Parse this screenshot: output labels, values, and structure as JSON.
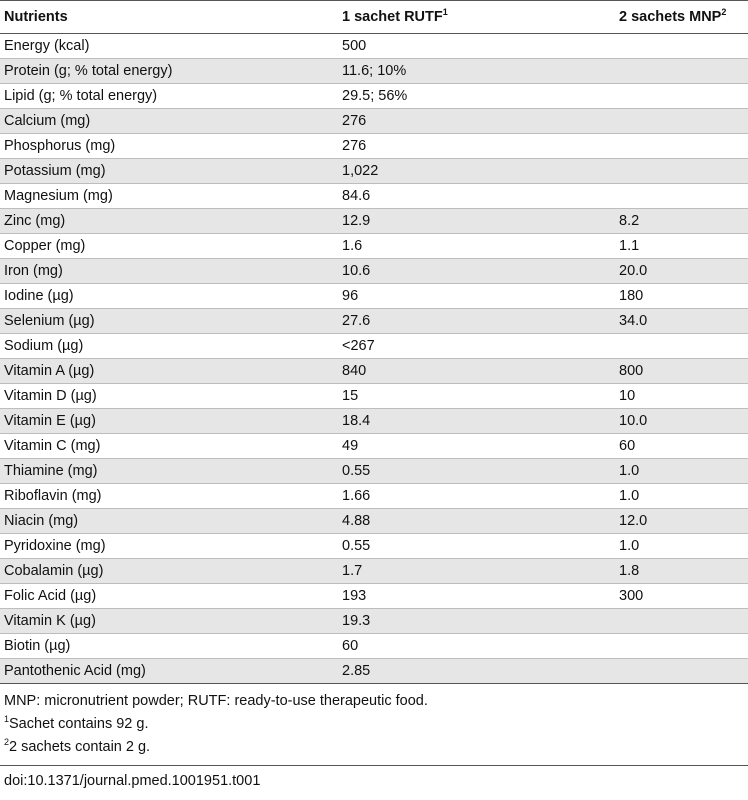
{
  "table": {
    "headers": {
      "col1": "Nutrients",
      "col2": "1 sachet RUTF",
      "col2_sup": "1",
      "col3": "2 sachets MNP",
      "col3_sup": "2"
    },
    "rows": [
      [
        "Energy (kcal)",
        "500",
        ""
      ],
      [
        "Protein (g; % total energy)",
        "11.6; 10%",
        ""
      ],
      [
        "Lipid (g; % total energy)",
        "29.5; 56%",
        ""
      ],
      [
        "Calcium (mg)",
        "276",
        ""
      ],
      [
        "Phosphorus (mg)",
        "276",
        ""
      ],
      [
        "Potassium (mg)",
        "1,022",
        ""
      ],
      [
        "Magnesium (mg)",
        "84.6",
        ""
      ],
      [
        "Zinc (mg)",
        "12.9",
        "8.2"
      ],
      [
        "Copper (mg)",
        "1.6",
        "1.1"
      ],
      [
        "Iron (mg)",
        "10.6",
        "20.0"
      ],
      [
        "Iodine (µg)",
        "96",
        "180"
      ],
      [
        "Selenium (µg)",
        "27.6",
        "34.0"
      ],
      [
        "Sodium (µg)",
        "<267",
        ""
      ],
      [
        "Vitamin A (µg)",
        "840",
        "800"
      ],
      [
        "Vitamin D (µg)",
        "15",
        "10"
      ],
      [
        "Vitamin E (µg)",
        "18.4",
        "10.0"
      ],
      [
        "Vitamin C (mg)",
        "49",
        "60"
      ],
      [
        "Thiamine (mg)",
        "0.55",
        "1.0"
      ],
      [
        "Riboflavin (mg)",
        "1.66",
        "1.0"
      ],
      [
        "Niacin (mg)",
        "4.88",
        "12.0"
      ],
      [
        "Pyridoxine (mg)",
        "0.55",
        "1.0"
      ],
      [
        "Cobalamin (µg)",
        "1.7",
        "1.8"
      ],
      [
        "Folic Acid (µg)",
        "193",
        "300"
      ],
      [
        "Vitamin K (µg)",
        "19.3",
        ""
      ],
      [
        "Biotin (µg)",
        "60",
        ""
      ],
      [
        "Pantothenic Acid (mg)",
        "2.85",
        ""
      ]
    ]
  },
  "footnotes": {
    "abbreviations": "MNP: micronutrient powder; RUTF: ready-to-use therapeutic food.",
    "note1_marker": "1",
    "note1_text": "Sachet contains 92 g.",
    "note2_marker": "2",
    "note2_text": "2 sachets contain 2 g."
  },
  "doi": "doi:10.1371/journal.pmed.1001951.t001"
}
